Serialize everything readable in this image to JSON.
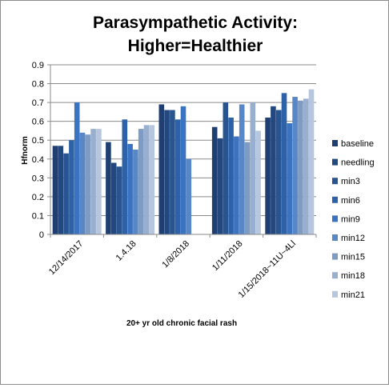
{
  "chart_data": {
    "type": "bar",
    "title_line1": "Parasympathetic Activity:",
    "title_line2": "Higher=Healthier",
    "xlabel": "20+ yr old chronic facial rash",
    "ylabel": "Hfnorm",
    "ylim": [
      0,
      0.9
    ],
    "yticks": [
      "0",
      "0.1",
      "0.2",
      "0.3",
      "0.4",
      "0.5",
      "0.6",
      "0.7",
      "0.8",
      "0.9"
    ],
    "grid": "horizontal",
    "legend_position": "right",
    "categories": [
      "12/14/2017",
      "1.4.18",
      "1/8/2018",
      "1/11/2018",
      "1/15/2018~11U~4Ll"
    ],
    "series": [
      {
        "name": "baseline",
        "color": "#1F3F73",
        "values": [
          0.47,
          0.49,
          0.69,
          0.57,
          0.62
        ]
      },
      {
        "name": "needling",
        "color": "#23487F",
        "values": [
          0.47,
          0.38,
          0.66,
          0.51,
          0.68
        ]
      },
      {
        "name": "min3",
        "color": "#28548F",
        "values": [
          0.43,
          0.36,
          0.66,
          0.7,
          0.66
        ]
      },
      {
        "name": "min6",
        "color": "#2E62A8",
        "values": [
          0.5,
          0.61,
          0.61,
          0.62,
          0.75
        ]
      },
      {
        "name": "min9",
        "color": "#3A73C2",
        "values": [
          0.7,
          0.48,
          0.68,
          0.52,
          0.59
        ]
      },
      {
        "name": "min12",
        "color": "#5887C8",
        "values": [
          0.54,
          0.45,
          0.4,
          0.69,
          0.73
        ]
      },
      {
        "name": "min15",
        "color": "#7E9BC4",
        "values": [
          0.53,
          0.56,
          null,
          0.49,
          0.71
        ]
      },
      {
        "name": "min18",
        "color": "#98AFD0",
        "values": [
          0.56,
          0.58,
          null,
          0.7,
          0.72
        ]
      },
      {
        "name": "min21",
        "color": "#B6C6DE",
        "values": [
          0.56,
          0.58,
          null,
          0.55,
          0.77
        ]
      }
    ]
  }
}
